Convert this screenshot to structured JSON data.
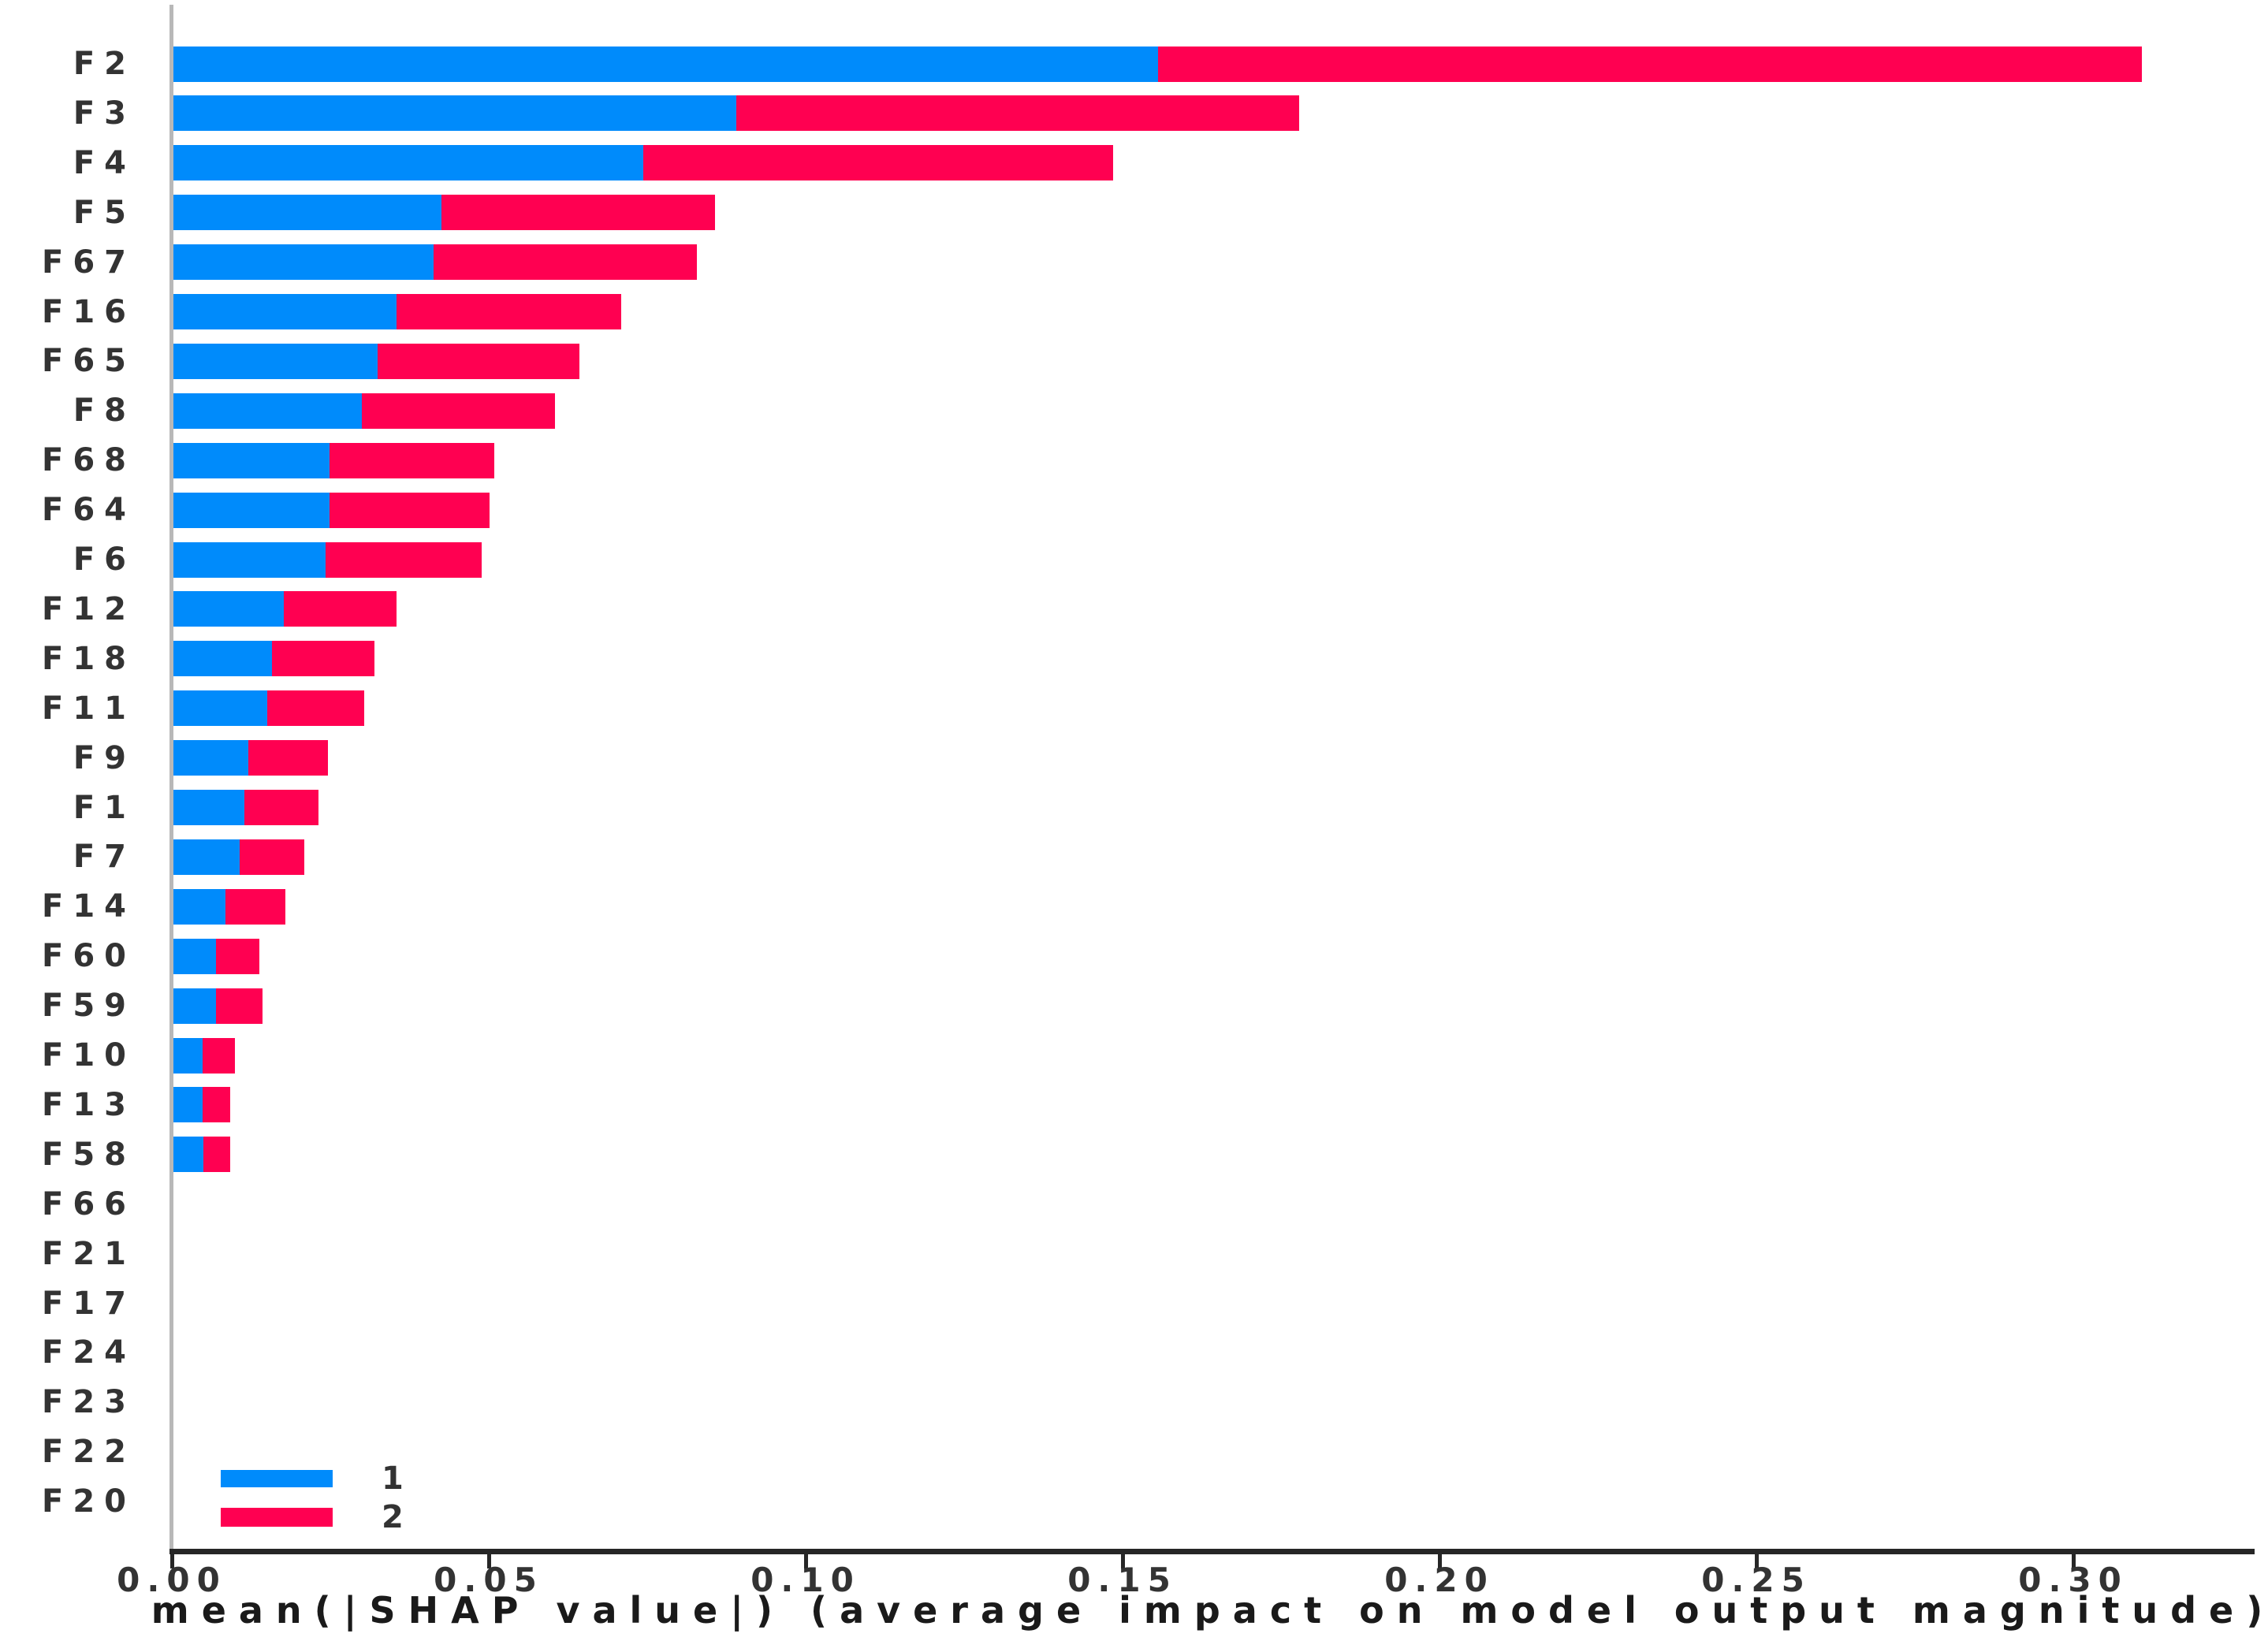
{
  "chart_data": {
    "type": "bar",
    "orientation": "horizontal",
    "stacked": true,
    "title": "",
    "xlabel": "mean(|SHAP value|) (average impact on model output magnitude)",
    "ylabel": "",
    "grid": false,
    "xlim": [
      0,
      0.3286
    ],
    "categories": [
      "F2",
      "F3",
      "F4",
      "F5",
      "F67",
      "F16",
      "F65",
      "F8",
      "F68",
      "F64",
      "F6",
      "F12",
      "F18",
      "F11",
      "F9",
      "F1",
      "F7",
      "F14",
      "F60",
      "F59",
      "F10",
      "F13",
      "F58",
      "F66",
      "F21",
      "F17",
      "F24",
      "F23",
      "F22",
      "F20"
    ],
    "series": [
      {
        "name": "1",
        "color": "#008bfb",
        "values": [
          0.1556,
          0.089,
          0.0744,
          0.0425,
          0.0413,
          0.0354,
          0.0324,
          0.03,
          0.0249,
          0.0249,
          0.0242,
          0.0176,
          0.0158,
          0.0151,
          0.0121,
          0.0115,
          0.0107,
          0.0085,
          0.007,
          0.007,
          0.0049,
          0.0049,
          0.005,
          0,
          0,
          0,
          0,
          0,
          0,
          0
        ]
      },
      {
        "name": "2",
        "color": "#ff0051",
        "values": [
          0.1552,
          0.0888,
          0.0741,
          0.0431,
          0.0415,
          0.0355,
          0.0318,
          0.0305,
          0.026,
          0.0253,
          0.0246,
          0.0178,
          0.0162,
          0.0153,
          0.0125,
          0.0117,
          0.0102,
          0.0095,
          0.0069,
          0.0073,
          0.0051,
          0.0044,
          0.0042,
          0,
          0,
          0,
          0,
          0,
          0,
          0
        ]
      }
    ],
    "xticks": {
      "values": [
        0,
        0.05,
        0.1,
        0.15,
        0.2,
        0.25,
        0.3
      ],
      "labels": [
        "0.00",
        "0.05",
        "0.10",
        "0.15",
        "0.20",
        "0.25",
        "0.30"
      ]
    },
    "legend": {
      "position": "lower-left",
      "entries": [
        {
          "label": "1",
          "color": "#008bfb"
        },
        {
          "label": "2",
          "color": "#ff0051"
        }
      ]
    }
  },
  "colors": {
    "class1": "#008bfb",
    "class2": "#ff0051",
    "axis_line": "#262626",
    "left_spine": "#b8b8b8",
    "text": "#333333",
    "background": "#ffffff"
  }
}
